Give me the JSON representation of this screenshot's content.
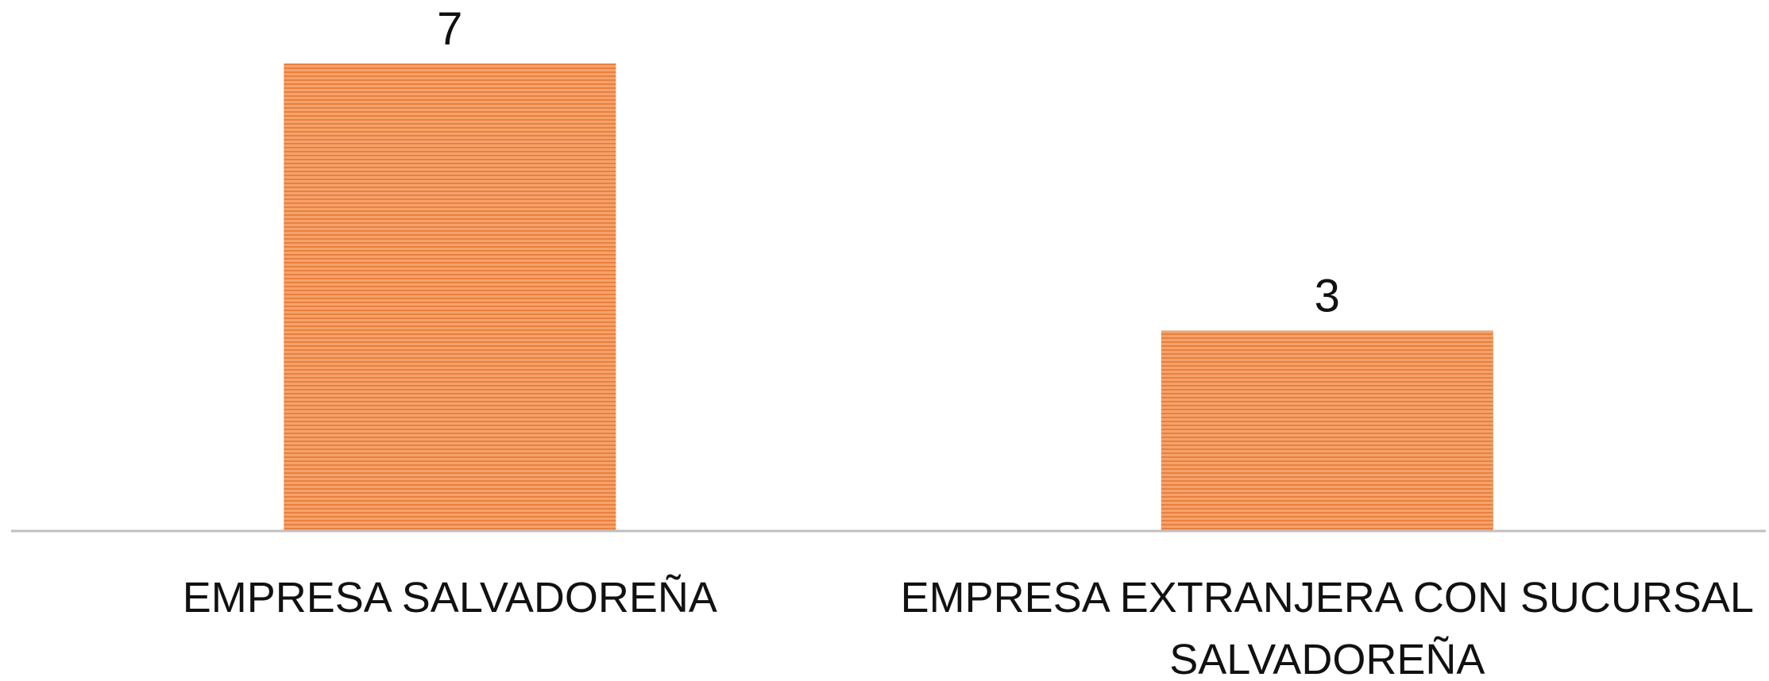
{
  "chart_data": {
    "type": "bar",
    "categories": [
      [
        "EMPRESA SALVADOREÑA"
      ],
      [
        "EMPRESA EXTRANJERA CON SUCURSAL",
        "SALVADOREÑA"
      ]
    ],
    "values": [
      7,
      3
    ],
    "data_labels": [
      "7",
      "3"
    ],
    "title": "",
    "xlabel": "",
    "ylabel": "",
    "ylim": [
      0,
      7
    ],
    "grid": false,
    "legend": "none",
    "colors": {
      "bar": "#f5a26b",
      "bar_stripe": "#e8803f",
      "axis": "#bfbfbf",
      "text": "#111111"
    }
  }
}
